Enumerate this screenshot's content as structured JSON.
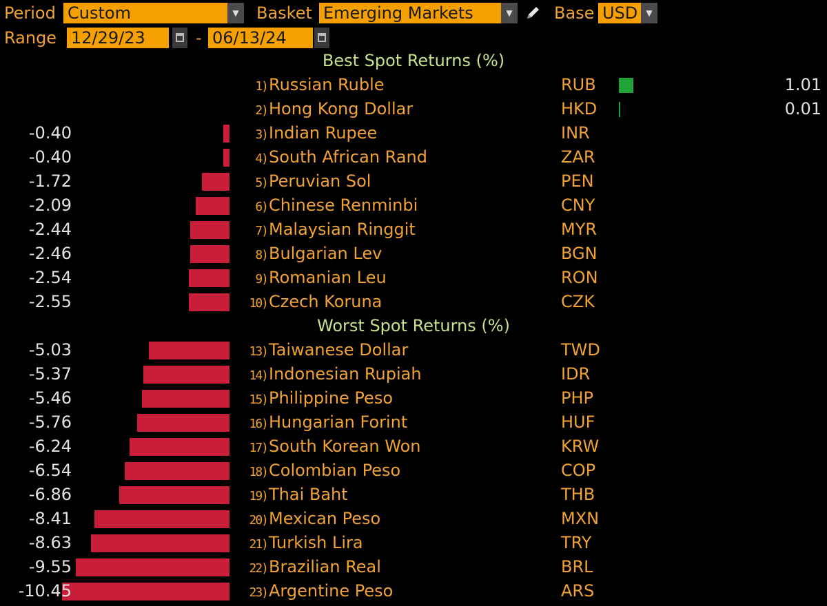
{
  "header": {
    "period_label": "Period",
    "period_value": "Custom",
    "basket_label": "Basket",
    "basket_value": "Emerging Markets",
    "base_label": "Base",
    "base_value": "USD",
    "range_label": "Range",
    "start_date": "12/29/23",
    "range_separator": "-",
    "end_date": "06/13/24"
  },
  "icons": {
    "dropdown": "chevron-down-icon",
    "edit": "pencil-icon",
    "calendar": "calendar-icon"
  },
  "colors": {
    "accent": "#f0a235",
    "field_bg": "#f5a000",
    "section_title": "#c8e08c",
    "negative_bar": "#c81e3a",
    "positive_bar": "#1fa33a",
    "value_text": "#e2e2e2"
  },
  "sections": {
    "best_title": "Best Spot Returns (%)",
    "worst_title": "Worst Spot Returns (%)"
  },
  "chart_data": {
    "type": "bar",
    "best": [
      {
        "rank": "1)",
        "name": "Russian Ruble",
        "code": "RUB",
        "value": 1.01,
        "label": "1.01"
      },
      {
        "rank": "2)",
        "name": "Hong Kong Dollar",
        "code": "HKD",
        "value": 0.01,
        "label": "0.01"
      },
      {
        "rank": "3)",
        "name": "Indian Rupee",
        "code": "INR",
        "value": -0.4,
        "label": "-0.40"
      },
      {
        "rank": "4)",
        "name": "South African Rand",
        "code": "ZAR",
        "value": -0.4,
        "label": "-0.40"
      },
      {
        "rank": "5)",
        "name": "Peruvian Sol",
        "code": "PEN",
        "value": -1.72,
        "label": "-1.72"
      },
      {
        "rank": "6)",
        "name": "Chinese Renminbi",
        "code": "CNY",
        "value": -2.09,
        "label": "-2.09"
      },
      {
        "rank": "7)",
        "name": "Malaysian Ringgit",
        "code": "MYR",
        "value": -2.44,
        "label": "-2.44"
      },
      {
        "rank": "8)",
        "name": "Bulgarian Lev",
        "code": "BGN",
        "value": -2.46,
        "label": "-2.46"
      },
      {
        "rank": "9)",
        "name": "Romanian Leu",
        "code": "RON",
        "value": -2.54,
        "label": "-2.54"
      },
      {
        "rank": "10)",
        "name": "Czech Koruna",
        "code": "CZK",
        "value": -2.55,
        "label": "-2.55"
      }
    ],
    "worst": [
      {
        "rank": "13)",
        "name": "Taiwanese Dollar",
        "code": "TWD",
        "value": -5.03,
        "label": "-5.03"
      },
      {
        "rank": "14)",
        "name": "Indonesian Rupiah",
        "code": "IDR",
        "value": -5.37,
        "label": "-5.37"
      },
      {
        "rank": "15)",
        "name": "Philippine Peso",
        "code": "PHP",
        "value": -5.46,
        "label": "-5.46"
      },
      {
        "rank": "16)",
        "name": "Hungarian Forint",
        "code": "HUF",
        "value": -5.76,
        "label": "-5.76"
      },
      {
        "rank": "17)",
        "name": "South Korean Won",
        "code": "KRW",
        "value": -6.24,
        "label": "-6.24"
      },
      {
        "rank": "18)",
        "name": "Colombian Peso",
        "code": "COP",
        "value": -6.54,
        "label": "-6.54"
      },
      {
        "rank": "19)",
        "name": "Thai Baht",
        "code": "THB",
        "value": -6.86,
        "label": "-6.86"
      },
      {
        "rank": "20)",
        "name": "Mexican Peso",
        "code": "MXN",
        "value": -8.41,
        "label": "-8.41"
      },
      {
        "rank": "21)",
        "name": "Turkish Lira",
        "code": "TRY",
        "value": -8.63,
        "label": "-8.63"
      },
      {
        "rank": "22)",
        "name": "Brazilian Real",
        "code": "BRL",
        "value": -9.55,
        "label": "-9.55"
      },
      {
        "rank": "23)",
        "name": "Argentine Peso",
        "code": "ARS",
        "value": -10.45,
        "label": "-10.45"
      }
    ]
  }
}
